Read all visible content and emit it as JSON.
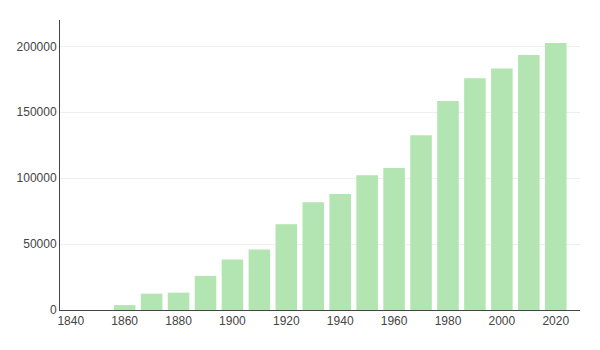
{
  "chart_data": {
    "type": "bar",
    "x": [
      1860,
      1870,
      1880,
      1890,
      1900,
      1910,
      1920,
      1930,
      1940,
      1950,
      1960,
      1970,
      1980,
      1990,
      2000,
      2010,
      2020
    ],
    "values": [
      3727,
      12380,
      13138,
      25874,
      38307,
      45941,
      65142,
      81679,
      88039,
      102213,
      107813,
      132483,
      158461,
      175795,
      183133,
      193524,
      202591
    ],
    "color": "#b2e5b2",
    "xlim": [
      1836,
      2029
    ],
    "xticks": [
      1840,
      1860,
      1880,
      1900,
      1920,
      1940,
      1960,
      1980,
      2000,
      2020
    ],
    "ylim": [
      0,
      220000
    ],
    "yticks": [
      0,
      50000,
      100000,
      150000,
      200000
    ],
    "grid": true
  }
}
